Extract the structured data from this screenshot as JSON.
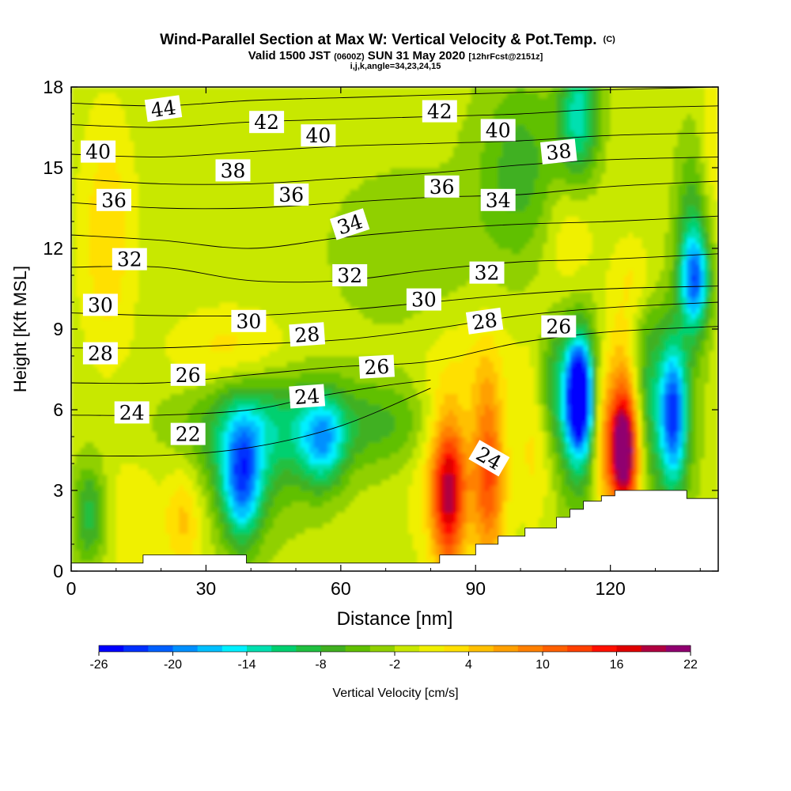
{
  "chart_data": {
    "type": "heatmap",
    "title": "Wind-Parallel Section at Max W: Vertical Velocity & Pot.Temp.",
    "title_mark": "(C)",
    "subtitle_parts": [
      "Valid 1500 JST ",
      "(0600Z)",
      " SUN 31 May 2020 ",
      "[12hrFcst@2151z]"
    ],
    "subtitle2": "i,j,k,angle=34,23,24,15",
    "xlabel": "Distance [nm]",
    "ylabel": "Height [Kft MSL]",
    "xlim": [
      0,
      144
    ],
    "ylim": [
      0,
      18
    ],
    "x_ticks": [
      "0",
      "30",
      "60",
      "90",
      "120"
    ],
    "x_tick_values": [
      0,
      30,
      60,
      90,
      120
    ],
    "y_ticks": [
      "0",
      "3",
      "6",
      "9",
      "12",
      "15",
      "18"
    ],
    "y_tick_values": [
      0,
      3,
      6,
      9,
      12,
      15,
      18
    ],
    "colorbar": {
      "label": "Vertical Velocity [cm/s]",
      "min": -26,
      "max": 22,
      "step": 2,
      "tick_labels": [
        "-26",
        "-20",
        "-14",
        "-8",
        "-2",
        "4",
        "10",
        "16",
        "22"
      ],
      "tick_values": [
        -26,
        -20,
        -14,
        -8,
        -2,
        4,
        10,
        16,
        22
      ],
      "colors": [
        "#0000ff",
        "#0030ff",
        "#0060ff",
        "#0090ff",
        "#00c0ff",
        "#00f0ff",
        "#00e0b0",
        "#00d070",
        "#20c040",
        "#40b020",
        "#60c000",
        "#90d000",
        "#c8e800",
        "#f0f000",
        "#ffe000",
        "#ffc000",
        "#ffa000",
        "#ff8000",
        "#ff6000",
        "#ff4000",
        "#ff1000",
        "#e00000",
        "#b00040",
        "#900070"
      ]
    },
    "background_w": -1,
    "w_features": [
      {
        "x": 4,
        "y": 2.1,
        "sx": 2.5,
        "sy": 1.3,
        "w": -8
      },
      {
        "x": 8,
        "y": 12.5,
        "sx": 4,
        "sy": 3,
        "w": 5
      },
      {
        "x": 25,
        "y": 2.0,
        "sx": 3,
        "sy": 1.5,
        "w": 6
      },
      {
        "x": 14,
        "y": 2.0,
        "sx": 4,
        "sy": 1.6,
        "w": 3
      },
      {
        "x": 36,
        "y": 8.1,
        "sx": 9,
        "sy": 1.1,
        "w": 5
      },
      {
        "x": 38,
        "y": 3.3,
        "sx": 3,
        "sy": 1.6,
        "w": -16
      },
      {
        "x": 40,
        "y": 4.8,
        "sx": 9,
        "sy": 2.0,
        "w": -8
      },
      {
        "x": 56,
        "y": 4.8,
        "sx": 3.5,
        "sy": 1.2,
        "w": -12
      },
      {
        "x": 62,
        "y": 5.5,
        "sx": 22,
        "sy": 1.2,
        "w": -6
      },
      {
        "x": 75,
        "y": 12.0,
        "sx": 12,
        "sy": 2.0,
        "w": -3
      },
      {
        "x": 84,
        "y": 2.8,
        "sx": 2.5,
        "sy": 2.0,
        "w": 16
      },
      {
        "x": 83,
        "y": 4.5,
        "sx": 5,
        "sy": 2.6,
        "w": 6
      },
      {
        "x": 93,
        "y": 3.5,
        "sx": 2.5,
        "sy": 2.5,
        "w": 11
      },
      {
        "x": 92,
        "y": 6.0,
        "sx": 4,
        "sy": 2.5,
        "w": 4
      },
      {
        "x": 100,
        "y": 15.0,
        "sx": 7,
        "sy": 2.5,
        "w": -6
      },
      {
        "x": 103,
        "y": 5.5,
        "sx": 3,
        "sy": 2.2,
        "w": 5
      },
      {
        "x": 107,
        "y": 7.0,
        "sx": 3,
        "sy": 1.5,
        "w": -6
      },
      {
        "x": 113,
        "y": 6.5,
        "sx": 1.8,
        "sy": 1.3,
        "w": -24
      },
      {
        "x": 113,
        "y": 6.2,
        "sx": 3.5,
        "sy": 2.5,
        "w": -12
      },
      {
        "x": 113,
        "y": 17.0,
        "sx": 3,
        "sy": 1.8,
        "w": -12
      },
      {
        "x": 118,
        "y": 5.0,
        "sx": 1.8,
        "sy": 2.0,
        "w": 6
      },
      {
        "x": 123,
        "y": 4.5,
        "sx": 2.2,
        "sy": 1.4,
        "w": 20
      },
      {
        "x": 123,
        "y": 5.5,
        "sx": 3.2,
        "sy": 2.8,
        "w": 10
      },
      {
        "x": 111,
        "y": 12.3,
        "sx": 4,
        "sy": 2.0,
        "w": 4
      },
      {
        "x": 128,
        "y": 6.5,
        "sx": 3,
        "sy": 2.5,
        "w": -8
      },
      {
        "x": 134,
        "y": 5.8,
        "sx": 2.0,
        "sy": 1.8,
        "w": -16
      },
      {
        "x": 134,
        "y": 5.8,
        "sx": 3.5,
        "sy": 2.6,
        "w": -6
      },
      {
        "x": 139,
        "y": 10.8,
        "sx": 2.2,
        "sy": 1.2,
        "w": -14
      },
      {
        "x": 138,
        "y": 12.0,
        "sx": 2.5,
        "sy": 2.5,
        "w": -8
      },
      {
        "x": 143,
        "y": 16.0,
        "sx": 2.0,
        "sy": 2.0,
        "w": 3
      },
      {
        "x": 126,
        "y": 11.0,
        "sx": 3,
        "sy": 1.0,
        "w": 3
      }
    ],
    "terrain": [
      [
        0,
        0.3
      ],
      [
        16,
        0.3
      ],
      [
        16,
        0.6
      ],
      [
        39,
        0.6
      ],
      [
        39,
        0.3
      ],
      [
        82,
        0.3
      ],
      [
        82,
        0.6
      ],
      [
        90,
        0.6
      ],
      [
        90,
        1.0
      ],
      [
        95,
        1.0
      ],
      [
        95,
        1.3
      ],
      [
        101,
        1.3
      ],
      [
        101,
        1.6
      ],
      [
        108,
        1.6
      ],
      [
        108,
        2.0
      ],
      [
        111,
        2.0
      ],
      [
        111,
        2.3
      ],
      [
        114,
        2.3
      ],
      [
        114,
        2.6
      ],
      [
        118,
        2.6
      ],
      [
        118,
        2.8
      ],
      [
        121,
        2.8
      ],
      [
        121,
        3.0
      ],
      [
        137,
        3.0
      ],
      [
        137,
        2.7
      ],
      [
        144,
        2.7
      ]
    ],
    "theta_lines": [
      {
        "value": 22,
        "points": [
          [
            0,
            4.3
          ],
          [
            20,
            4.3
          ],
          [
            40,
            4.6
          ],
          [
            60,
            5.4
          ],
          [
            80,
            6.8
          ]
        ]
      },
      {
        "value": 24,
        "points": [
          [
            0,
            5.8
          ],
          [
            20,
            5.8
          ],
          [
            40,
            6.0
          ],
          [
            55,
            6.5
          ],
          [
            70,
            6.9
          ],
          [
            80,
            7.1
          ]
        ]
      },
      {
        "value": 26,
        "points": [
          [
            0,
            7.0
          ],
          [
            20,
            7.0
          ],
          [
            40,
            7.3
          ],
          [
            60,
            7.6
          ],
          [
            80,
            7.8
          ],
          [
            100,
            8.5
          ],
          [
            120,
            8.9
          ],
          [
            144,
            9.1
          ]
        ]
      },
      {
        "value": 28,
        "points": [
          [
            0,
            8.3
          ],
          [
            20,
            8.3
          ],
          [
            35,
            8.4
          ],
          [
            60,
            8.6
          ],
          [
            80,
            9.0
          ],
          [
            100,
            9.5
          ],
          [
            120,
            9.8
          ],
          [
            144,
            10.0
          ]
        ]
      },
      {
        "value": 30,
        "points": [
          [
            0,
            9.6
          ],
          [
            20,
            9.5
          ],
          [
            40,
            9.5
          ],
          [
            60,
            9.7
          ],
          [
            80,
            10.0
          ],
          [
            100,
            10.3
          ],
          [
            120,
            10.5
          ],
          [
            144,
            10.6
          ]
        ]
      },
      {
        "value": 32,
        "points": [
          [
            0,
            11.3
          ],
          [
            20,
            11.3
          ],
          [
            40,
            10.8
          ],
          [
            60,
            10.8
          ],
          [
            80,
            11.2
          ],
          [
            100,
            11.5
          ],
          [
            120,
            11.6
          ],
          [
            144,
            11.8
          ]
        ]
      },
      {
        "value": 34,
        "points": [
          [
            0,
            12.5
          ],
          [
            20,
            12.3
          ],
          [
            40,
            12.0
          ],
          [
            60,
            12.4
          ],
          [
            80,
            12.7
          ],
          [
            100,
            12.9
          ],
          [
            120,
            13.0
          ],
          [
            144,
            13.2
          ]
        ]
      },
      {
        "value": 36,
        "points": [
          [
            0,
            13.7
          ],
          [
            20,
            13.5
          ],
          [
            40,
            13.5
          ],
          [
            60,
            13.7
          ],
          [
            80,
            13.9
          ],
          [
            100,
            14.0
          ],
          [
            120,
            14.3
          ],
          [
            144,
            14.5
          ]
        ]
      },
      {
        "value": 38,
        "points": [
          [
            0,
            14.6
          ],
          [
            20,
            14.4
          ],
          [
            40,
            14.4
          ],
          [
            60,
            14.6
          ],
          [
            80,
            14.8
          ],
          [
            100,
            15.1
          ],
          [
            120,
            15.3
          ],
          [
            144,
            15.4
          ]
        ]
      },
      {
        "value": 40,
        "points": [
          [
            0,
            15.5
          ],
          [
            20,
            15.4
          ],
          [
            40,
            15.6
          ],
          [
            60,
            15.8
          ],
          [
            80,
            15.9
          ],
          [
            100,
            16.0
          ],
          [
            120,
            16.2
          ],
          [
            144,
            16.3
          ]
        ]
      },
      {
        "value": 42,
        "points": [
          [
            0,
            16.6
          ],
          [
            20,
            16.5
          ],
          [
            40,
            16.7
          ],
          [
            60,
            16.8
          ],
          [
            80,
            16.9
          ],
          [
            100,
            17.0
          ],
          [
            120,
            17.2
          ],
          [
            144,
            17.3
          ]
        ]
      },
      {
        "value": 44,
        "points": [
          [
            0,
            17.4
          ],
          [
            20,
            17.3
          ],
          [
            40,
            17.5
          ],
          [
            60,
            17.6
          ],
          [
            80,
            17.7
          ],
          [
            100,
            17.8
          ],
          [
            120,
            17.9
          ],
          [
            144,
            18.0
          ]
        ]
      }
    ],
    "contour_labels": [
      {
        "text": "44",
        "x": 20.5,
        "y": 17.2,
        "angle": -8
      },
      {
        "text": "42",
        "x": 43.5,
        "y": 16.7,
        "angle": 0
      },
      {
        "text": "42",
        "x": 82,
        "y": 17.1,
        "angle": 0
      },
      {
        "text": "40",
        "x": 6,
        "y": 15.6,
        "angle": 0
      },
      {
        "text": "40",
        "x": 55,
        "y": 16.2,
        "angle": 0
      },
      {
        "text": "40",
        "x": 95,
        "y": 16.4,
        "angle": 0
      },
      {
        "text": "38",
        "x": 36,
        "y": 14.9,
        "angle": 0
      },
      {
        "text": "38",
        "x": 108.5,
        "y": 15.6,
        "angle": -6
      },
      {
        "text": "36",
        "x": 9.5,
        "y": 13.8,
        "angle": 0
      },
      {
        "text": "36",
        "x": 49,
        "y": 14.0,
        "angle": 0
      },
      {
        "text": "36",
        "x": 82.5,
        "y": 14.3,
        "angle": 0
      },
      {
        "text": "34",
        "x": 62,
        "y": 12.9,
        "angle": -18
      },
      {
        "text": "34",
        "x": 95,
        "y": 13.8,
        "angle": 0
      },
      {
        "text": "32",
        "x": 13,
        "y": 11.6,
        "angle": 0
      },
      {
        "text": "32",
        "x": 62,
        "y": 11.0,
        "angle": 0
      },
      {
        "text": "32",
        "x": 92.5,
        "y": 11.1,
        "angle": 0
      },
      {
        "text": "30",
        "x": 6.5,
        "y": 9.9,
        "angle": 0
      },
      {
        "text": "30",
        "x": 39.5,
        "y": 9.3,
        "angle": 0
      },
      {
        "text": "30",
        "x": 78.5,
        "y": 10.1,
        "angle": 0
      },
      {
        "text": "28",
        "x": 6.5,
        "y": 8.1,
        "angle": 0
      },
      {
        "text": "28",
        "x": 52.5,
        "y": 8.8,
        "angle": -4
      },
      {
        "text": "28",
        "x": 92,
        "y": 9.3,
        "angle": -8
      },
      {
        "text": "26",
        "x": 26,
        "y": 7.3,
        "angle": 0
      },
      {
        "text": "26",
        "x": 68,
        "y": 7.6,
        "angle": -3
      },
      {
        "text": "26",
        "x": 108.5,
        "y": 9.1,
        "angle": 0
      },
      {
        "text": "24",
        "x": 13.5,
        "y": 5.9,
        "angle": 0
      },
      {
        "text": "24",
        "x": 52.5,
        "y": 6.5,
        "angle": -4
      },
      {
        "text": "24",
        "x": 93,
        "y": 4.2,
        "angle": 30
      },
      {
        "text": "22",
        "x": 26,
        "y": 5.1,
        "angle": 0
      }
    ]
  }
}
